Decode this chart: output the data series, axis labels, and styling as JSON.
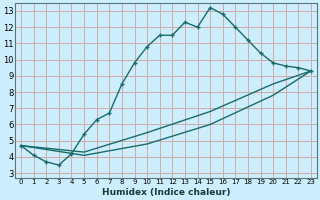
{
  "xlabel": "Humidex (Indice chaleur)",
  "bg_color": "#cceeff",
  "grid_color": "#ccaaaa",
  "line_color": "#1a6b6b",
  "xlim": [
    -0.5,
    23.5
  ],
  "ylim": [
    2.7,
    13.5
  ],
  "yticks": [
    3,
    4,
    5,
    6,
    7,
    8,
    9,
    10,
    11,
    12,
    13
  ],
  "xticks": [
    0,
    1,
    2,
    3,
    4,
    5,
    6,
    7,
    8,
    9,
    10,
    11,
    12,
    13,
    14,
    15,
    16,
    17,
    18,
    19,
    20,
    21,
    22,
    23
  ],
  "line1_x": [
    0,
    1,
    2,
    3,
    4,
    5,
    6,
    7,
    8,
    9,
    10,
    11,
    12,
    13,
    14,
    15,
    16,
    17,
    18,
    19,
    20,
    21,
    22,
    23
  ],
  "line1_y": [
    4.7,
    4.1,
    3.7,
    3.5,
    4.2,
    5.4,
    6.3,
    6.7,
    8.5,
    9.8,
    10.8,
    11.5,
    11.5,
    12.3,
    12.0,
    13.2,
    12.8,
    12.0,
    11.2,
    10.4,
    9.8,
    9.6,
    9.5,
    9.3
  ],
  "line2_x": [
    0,
    23
  ],
  "line2_y": [
    4.7,
    9.3
  ],
  "line3_x": [
    0,
    23
  ],
  "line3_y": [
    4.7,
    9.3
  ],
  "line2_ctrl_x": [
    0,
    5,
    10,
    15,
    20,
    23
  ],
  "line2_ctrl_y": [
    4.7,
    4.3,
    5.5,
    6.8,
    8.5,
    9.3
  ],
  "line3_ctrl_x": [
    0,
    5,
    10,
    15,
    20,
    23
  ],
  "line3_ctrl_y": [
    4.7,
    4.1,
    4.8,
    6.0,
    7.8,
    9.3
  ]
}
